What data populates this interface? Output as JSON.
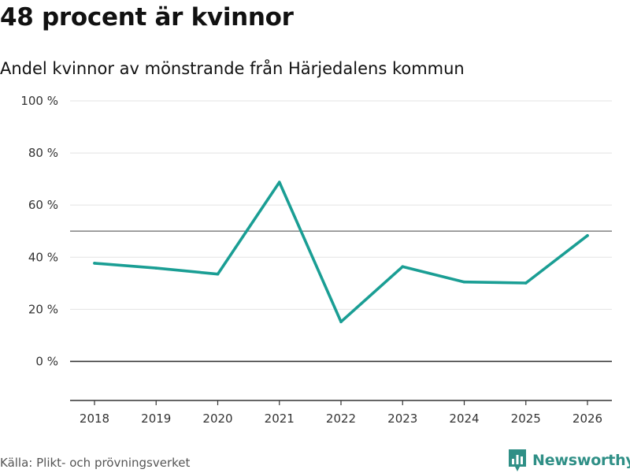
{
  "title": "48 procent är kvinnor",
  "subtitle": "Andel kvinnor av mönstrande från Härjedalens kommun",
  "source": "Källa: Plikt- och prövningsverket",
  "brand": {
    "name": "Newsworthy",
    "icon": "newsworthy-logo-icon"
  },
  "colors": {
    "line": "#1a9e94",
    "grid": "#e3e3e3",
    "axis": "#333333",
    "reference": "#777777",
    "brand": "#2f8f86"
  },
  "chart_data": {
    "type": "line",
    "title": "48 procent är kvinnor",
    "subtitle": "Andel kvinnor av mönstrande från Härjedalens kommun",
    "xlabel": "",
    "ylabel": "",
    "categories": [
      "2018",
      "2019",
      "2020",
      "2021",
      "2022",
      "2023",
      "2024",
      "2025",
      "2026"
    ],
    "series": [
      {
        "name": "Andel kvinnor",
        "values": [
          37.7,
          35.8,
          33.5,
          68.8,
          15.2,
          36.4,
          30.5,
          30.1,
          48.3
        ]
      }
    ],
    "ylim": [
      -15,
      100
    ],
    "yticks": [
      0,
      20,
      40,
      60,
      80,
      100
    ],
    "ytick_labels": [
      "0 %",
      "20 %",
      "40 %",
      "60 %",
      "80 %",
      "100 %"
    ],
    "reference_line": 50,
    "grid": true,
    "legend": "none"
  }
}
